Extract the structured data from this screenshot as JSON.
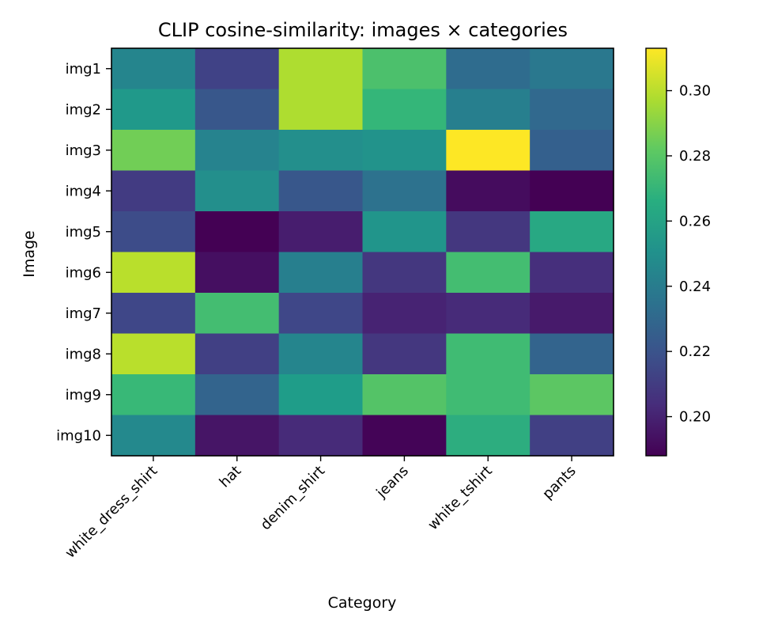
{
  "chart_data": {
    "type": "heatmap",
    "title": "CLIP cosine-similarity: images × categories",
    "xlabel": "Category",
    "ylabel": "Image",
    "x_categories": [
      "white_dress_shirt",
      "hat",
      "denim_shirt",
      "jeans",
      "white_tshirt",
      "pants"
    ],
    "y_categories": [
      "img1",
      "img2",
      "img3",
      "img4",
      "img5",
      "img6",
      "img7",
      "img8",
      "img9",
      "img10"
    ],
    "values": [
      [
        0.245,
        0.213,
        0.298,
        0.277,
        0.232,
        0.238
      ],
      [
        0.255,
        0.222,
        0.298,
        0.271,
        0.242,
        0.23
      ],
      [
        0.286,
        0.244,
        0.25,
        0.252,
        0.313,
        0.226
      ],
      [
        0.21,
        0.25,
        0.222,
        0.235,
        0.192,
        0.188
      ],
      [
        0.217,
        0.188,
        0.198,
        0.253,
        0.208,
        0.263
      ],
      [
        0.3,
        0.193,
        0.242,
        0.208,
        0.275,
        0.205
      ],
      [
        0.215,
        0.275,
        0.215,
        0.2,
        0.203,
        0.197
      ],
      [
        0.3,
        0.212,
        0.245,
        0.208,
        0.274,
        0.228
      ],
      [
        0.272,
        0.228,
        0.257,
        0.279,
        0.274,
        0.281
      ],
      [
        0.247,
        0.195,
        0.203,
        0.189,
        0.266,
        0.212
      ]
    ],
    "color_range": [
      0.188,
      0.313
    ],
    "colormap": "viridis",
    "colorbar_ticks": [
      0.2,
      0.22,
      0.24,
      0.26,
      0.28,
      0.3
    ],
    "colorbar_tick_labels": [
      "0.20",
      "0.22",
      "0.24",
      "0.26",
      "0.28",
      "0.30"
    ],
    "grid": false,
    "colorbar_position": "right"
  }
}
